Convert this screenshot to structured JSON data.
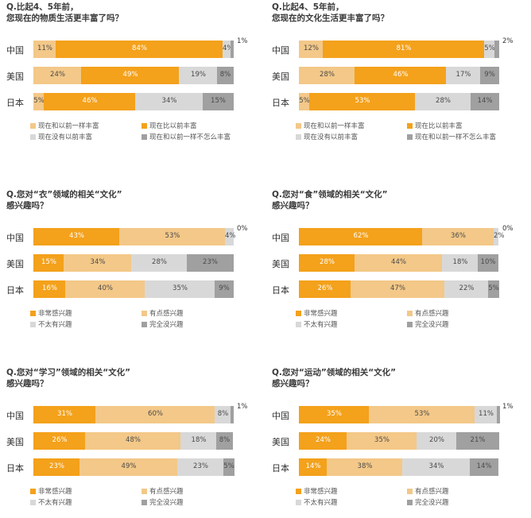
{
  "colors": {
    "deep_orange": "#f4a11b",
    "light_orange": "#f3c888",
    "light_gray": "#d8d8d8",
    "dark_gray": "#a0a0a0"
  },
  "chart_data": [
    {
      "type": "bar",
      "stacked": true,
      "orientation": "horizontal",
      "title_lines": [
        "Q.比起4、5年前，",
        "您现在的物质生活更丰富了吗？"
      ],
      "categories": [
        "中国",
        "美国",
        "日本"
      ],
      "series": [
        {
          "name": "现在和以前一样丰富",
          "color": "light_orange",
          "values": [
            11,
            24,
            5
          ],
          "labels": [
            "11%",
            "24%",
            "5%"
          ]
        },
        {
          "name": "现在比以前丰富",
          "color": "deep_orange",
          "values": [
            84,
            49,
            46
          ],
          "labels": [
            "84%",
            "49%",
            "46%"
          ]
        },
        {
          "name": "现在没有以前丰富",
          "color": "light_gray",
          "values": [
            4,
            19,
            34
          ],
          "labels": [
            "4%",
            "19%",
            "34%"
          ]
        },
        {
          "name": "现在和以前一样不怎么丰富",
          "color": "dark_gray",
          "values": [
            1,
            8,
            15
          ],
          "labels": [
            "1%",
            "8%",
            "15%"
          ]
        }
      ]
    },
    {
      "type": "bar",
      "stacked": true,
      "orientation": "horizontal",
      "title_lines": [
        "Q.比起4、5年前，",
        "您现在的文化生活更丰富了吗？"
      ],
      "categories": [
        "中国",
        "美国",
        "日本"
      ],
      "series": [
        {
          "name": "现在和以前一样丰富",
          "color": "light_orange",
          "values": [
            12,
            28,
            5
          ],
          "labels": [
            "12%",
            "28%",
            "5%"
          ]
        },
        {
          "name": "现在比以前丰富",
          "color": "deep_orange",
          "values": [
            81,
            46,
            53
          ],
          "labels": [
            "81%",
            "46%",
            "53%"
          ]
        },
        {
          "name": "现在没有以前丰富",
          "color": "light_gray",
          "values": [
            5,
            17,
            28
          ],
          "labels": [
            "5%",
            "17%",
            "28%"
          ]
        },
        {
          "name": "现在和以前一样不怎么丰富",
          "color": "dark_gray",
          "values": [
            2,
            9,
            14
          ],
          "labels": [
            "2%",
            "9%",
            "14%"
          ]
        }
      ]
    },
    {
      "type": "bar",
      "stacked": true,
      "orientation": "horizontal",
      "title_lines": [
        "Q.您对“衣”领域的相关“文化”",
        "感兴趣吗？"
      ],
      "categories": [
        "中国",
        "美国",
        "日本"
      ],
      "series": [
        {
          "name": "非常感兴趣",
          "color": "deep_orange",
          "values": [
            43,
            15,
            16
          ],
          "labels": [
            "43%",
            "15%",
            "16%"
          ]
        },
        {
          "name": "有点感兴趣",
          "color": "light_orange",
          "values": [
            53,
            34,
            40
          ],
          "labels": [
            "53%",
            "34%",
            "40%"
          ]
        },
        {
          "name": "不太有兴趣",
          "color": "light_gray",
          "values": [
            4,
            28,
            35
          ],
          "labels": [
            "4%",
            "28%",
            "35%"
          ]
        },
        {
          "name": "完全没兴趣",
          "color": "dark_gray",
          "values": [
            0,
            23,
            9
          ],
          "labels": [
            "0%",
            "23%",
            "9%"
          ]
        }
      ]
    },
    {
      "type": "bar",
      "stacked": true,
      "orientation": "horizontal",
      "title_lines": [
        "Q.您对“食”领域的相关“文化”",
        "感兴趣吗？"
      ],
      "categories": [
        "中国",
        "美国",
        "日本"
      ],
      "series": [
        {
          "name": "非常感兴趣",
          "color": "deep_orange",
          "values": [
            62,
            28,
            26
          ],
          "labels": [
            "62%",
            "28%",
            "26%"
          ]
        },
        {
          "name": "有点感兴趣",
          "color": "light_orange",
          "values": [
            36,
            44,
            47
          ],
          "labels": [
            "36%",
            "44%",
            "47%"
          ]
        },
        {
          "name": "不太有兴趣",
          "color": "light_gray",
          "values": [
            2,
            18,
            22
          ],
          "labels": [
            "2%",
            "18%",
            "22%"
          ]
        },
        {
          "name": "完全没兴趣",
          "color": "dark_gray",
          "values": [
            0,
            10,
            5
          ],
          "labels": [
            "0%",
            "10%",
            "5%"
          ]
        }
      ]
    },
    {
      "type": "bar",
      "stacked": true,
      "orientation": "horizontal",
      "title_lines": [
        "Q.您对“学习”领域的相关“文化”",
        "感兴趣吗？"
      ],
      "categories": [
        "中国",
        "美国",
        "日本"
      ],
      "series": [
        {
          "name": "非常感兴趣",
          "color": "deep_orange",
          "values": [
            31,
            26,
            23
          ],
          "labels": [
            "31%",
            "26%",
            "23%"
          ]
        },
        {
          "name": "有点感兴趣",
          "color": "light_orange",
          "values": [
            60,
            48,
            49
          ],
          "labels": [
            "60%",
            "48%",
            "49%"
          ]
        },
        {
          "name": "不太有兴趣",
          "color": "light_gray",
          "values": [
            8,
            18,
            23
          ],
          "labels": [
            "8%",
            "18%",
            "23%"
          ]
        },
        {
          "name": "完全没兴趣",
          "color": "dark_gray",
          "values": [
            1,
            8,
            5
          ],
          "labels": [
            "1%",
            "8%",
            "5%"
          ]
        }
      ]
    },
    {
      "type": "bar",
      "stacked": true,
      "orientation": "horizontal",
      "title_lines": [
        "Q.您对“运动”领域的相关“文化”",
        "感兴趣吗？"
      ],
      "categories": [
        "中国",
        "美国",
        "日本"
      ],
      "series": [
        {
          "name": "非常感兴趣",
          "color": "deep_orange",
          "values": [
            35,
            24,
            14
          ],
          "labels": [
            "35%",
            "24%",
            "14%"
          ]
        },
        {
          "name": "有点感兴趣",
          "color": "light_orange",
          "values": [
            53,
            35,
            38
          ],
          "labels": [
            "53%",
            "35%",
            "38%"
          ]
        },
        {
          "name": "不太有兴趣",
          "color": "light_gray",
          "values": [
            11,
            20,
            34
          ],
          "labels": [
            "11%",
            "20%",
            "34%"
          ]
        },
        {
          "name": "完全没兴趣",
          "color": "dark_gray",
          "values": [
            1,
            21,
            14
          ],
          "labels": [
            "1%",
            "21%",
            "14%"
          ]
        }
      ]
    }
  ]
}
